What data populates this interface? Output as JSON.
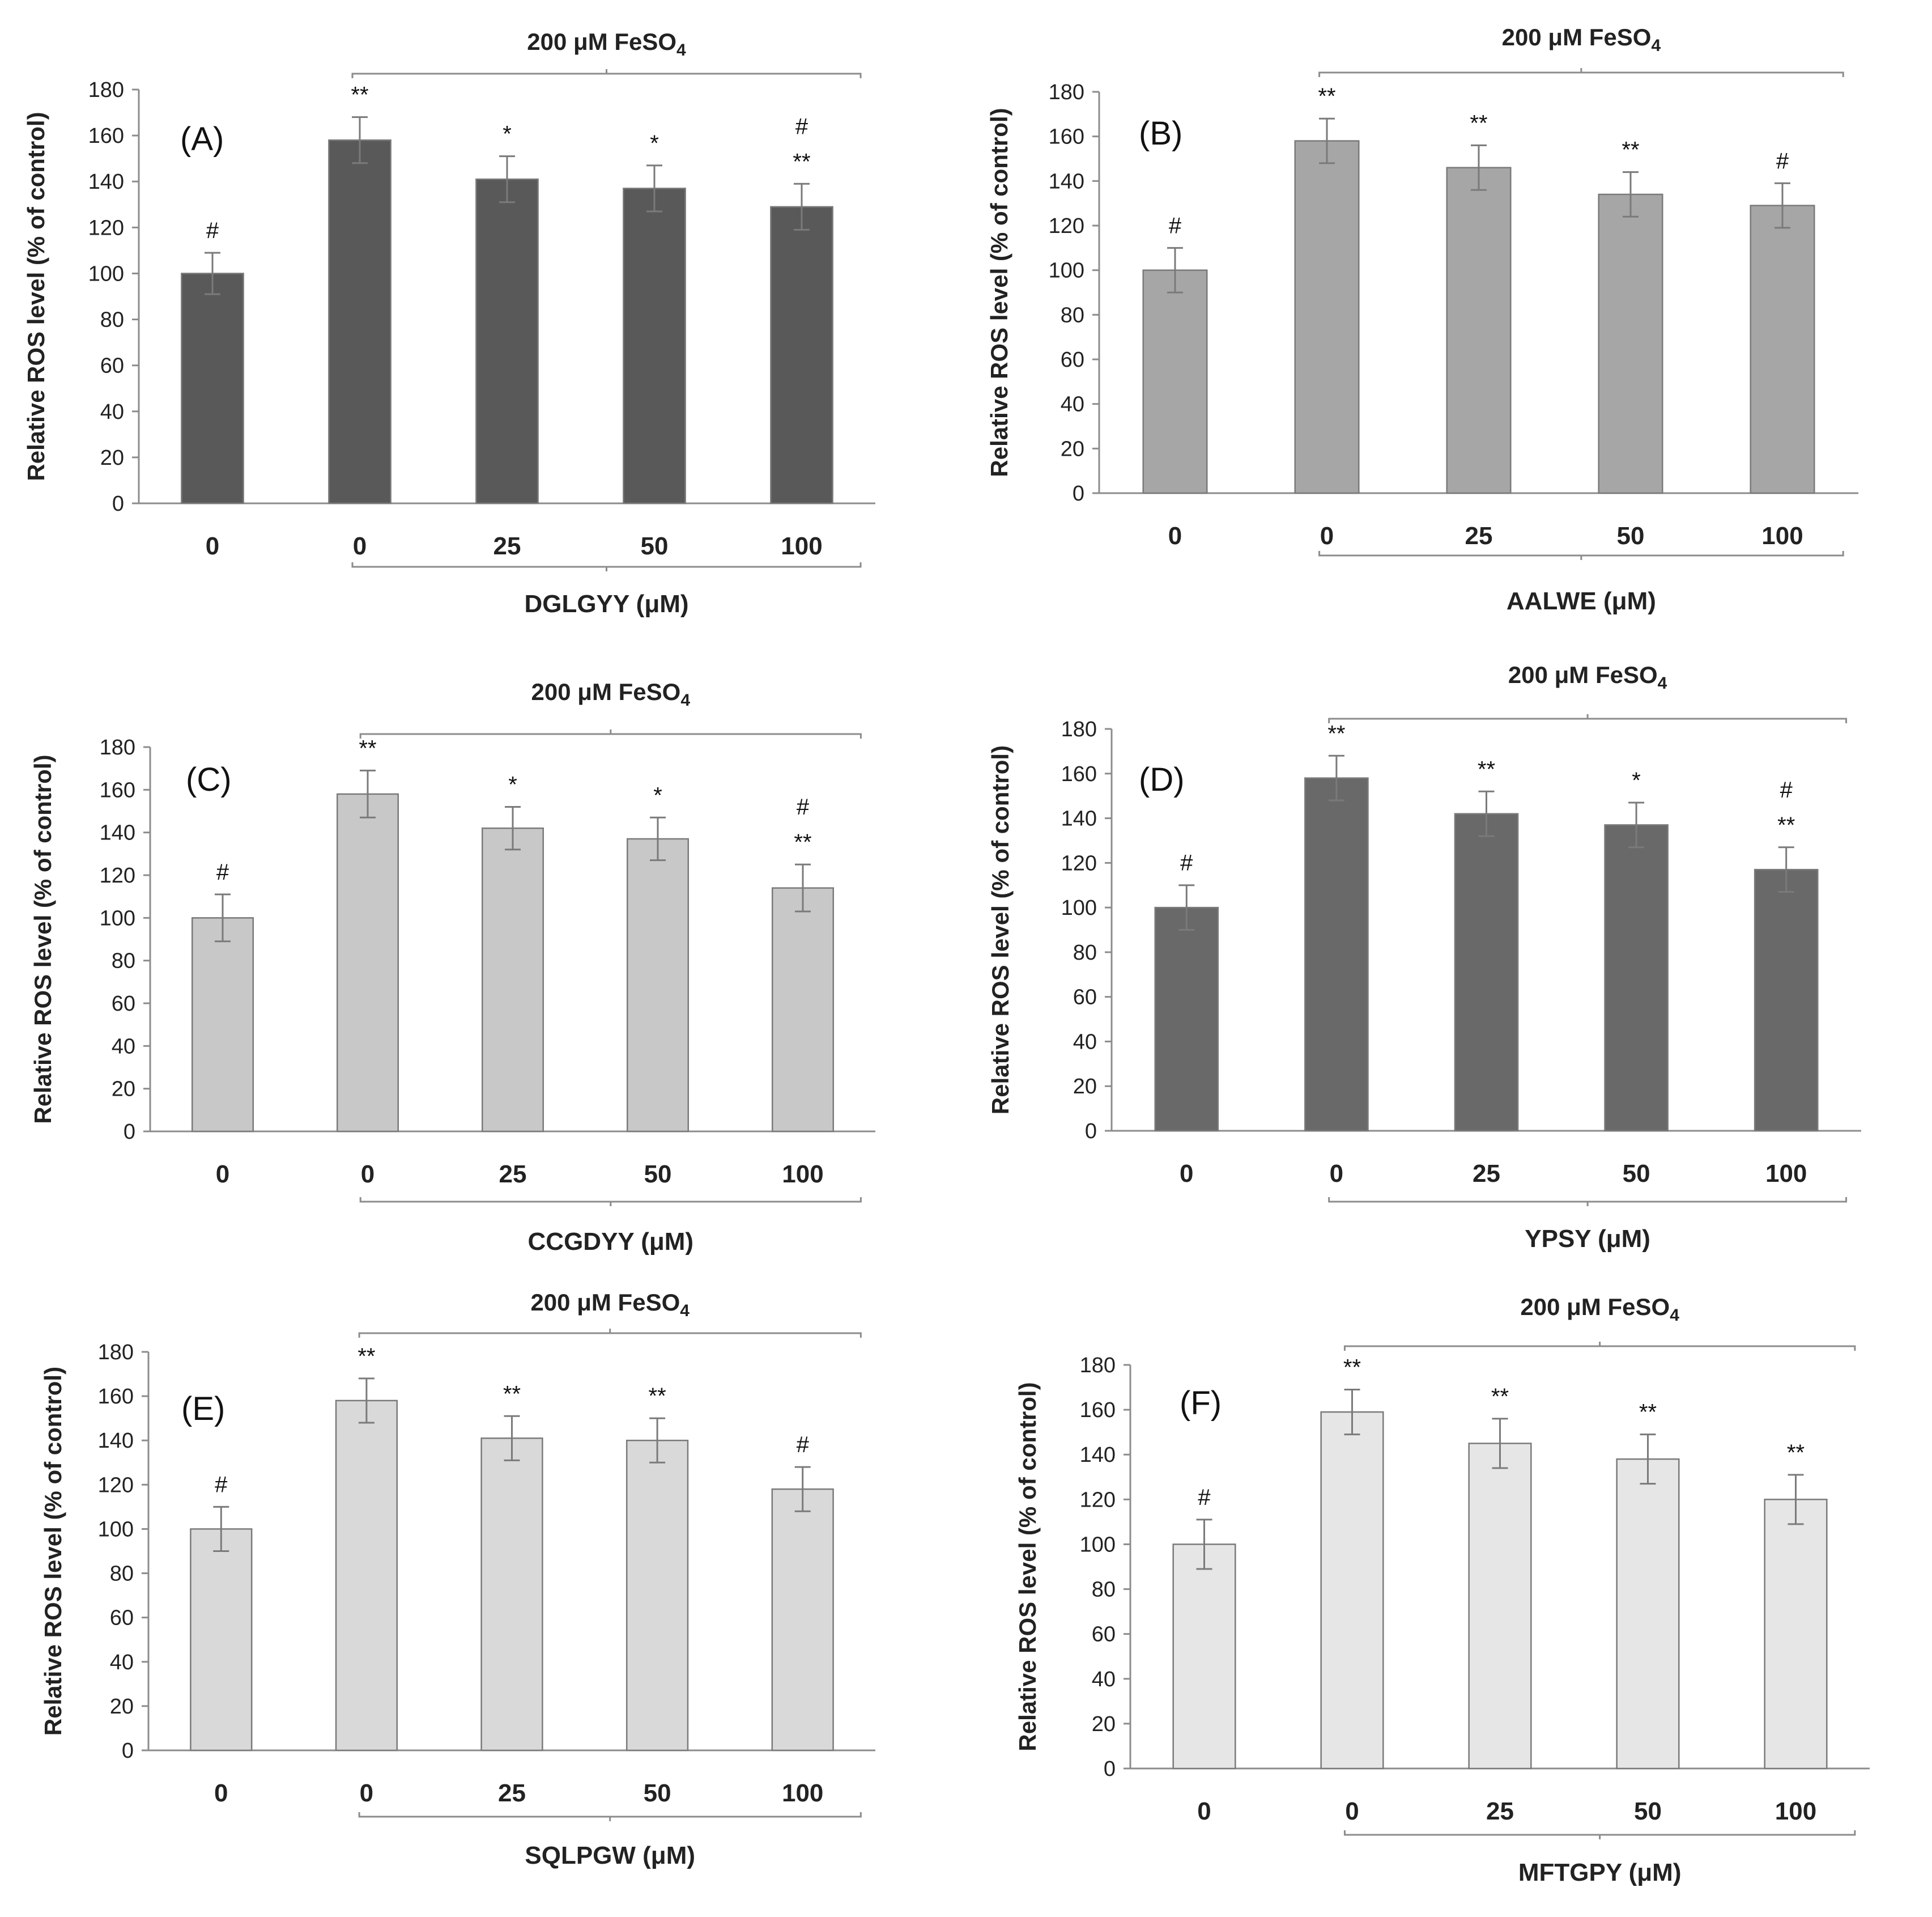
{
  "chart_data": [
    {
      "type": "bar",
      "panel": "(A)",
      "title": "",
      "group_label": "200 μM FeSO",
      "group_subscript": "4",
      "xlabel": "DGLGYY (μM)",
      "ylabel": "Relative ROS level  (% of control)",
      "categories": [
        "0",
        "0",
        "25",
        "50",
        "100"
      ],
      "values": [
        100,
        158,
        141,
        137,
        129
      ],
      "errors": [
        9,
        10,
        10,
        10,
        10
      ],
      "annotations": [
        [
          "#"
        ],
        [
          "**"
        ],
        [
          "*"
        ],
        [
          "*"
        ],
        [
          "**",
          "#"
        ]
      ],
      "ylim": [
        0,
        180
      ],
      "yticks": [
        0,
        20,
        40,
        60,
        80,
        100,
        120,
        140,
        160,
        180
      ],
      "bar_color": "#595959"
    },
    {
      "type": "bar",
      "panel": "(B)",
      "title": "",
      "group_label": "200 μM FeSO",
      "group_subscript": "4",
      "xlabel": "AALWE (μM)",
      "ylabel": "Relative ROS level  (% of control)",
      "categories": [
        "0",
        "0",
        "25",
        "50",
        "100"
      ],
      "values": [
        100,
        158,
        146,
        134,
        129
      ],
      "errors": [
        10,
        10,
        10,
        10,
        10
      ],
      "annotations": [
        [
          "#"
        ],
        [
          "**"
        ],
        [
          "**"
        ],
        [
          "**"
        ],
        [
          "#"
        ]
      ],
      "ylim": [
        0,
        180
      ],
      "yticks": [
        0,
        20,
        40,
        60,
        80,
        100,
        120,
        140,
        160,
        180
      ],
      "bar_color": "#a6a6a6"
    },
    {
      "type": "bar",
      "panel": "(C)",
      "title": "",
      "group_label": "200 μM FeSO",
      "group_subscript": "4",
      "xlabel": "CCGDYY (μM)",
      "ylabel": "Relative ROS level  (% of control)",
      "categories": [
        "0",
        "0",
        "25",
        "50",
        "100"
      ],
      "values": [
        100,
        158,
        142,
        137,
        114
      ],
      "errors": [
        11,
        11,
        10,
        10,
        11
      ],
      "annotations": [
        [
          "#"
        ],
        [
          "**"
        ],
        [
          "*"
        ],
        [
          "*"
        ],
        [
          "**",
          "#"
        ]
      ],
      "ylim": [
        0,
        180
      ],
      "yticks": [
        0,
        20,
        40,
        60,
        80,
        100,
        120,
        140,
        160,
        180
      ],
      "bar_color": "#c8c8c8"
    },
    {
      "type": "bar",
      "panel": "(D)",
      "title": "",
      "group_label": "200 μM FeSO",
      "group_subscript": "4",
      "xlabel": "YPSY (μM)",
      "ylabel": "Relative ROS level  (%  of control)",
      "categories": [
        "0",
        "0",
        "25",
        "50",
        "100"
      ],
      "values": [
        100,
        158,
        142,
        137,
        117
      ],
      "errors": [
        10,
        10,
        10,
        10,
        10
      ],
      "annotations": [
        [
          "#"
        ],
        [
          "**"
        ],
        [
          "**"
        ],
        [
          "*"
        ],
        [
          "**",
          "#"
        ]
      ],
      "ylim": [
        0,
        180
      ],
      "yticks": [
        0,
        20,
        40,
        60,
        80,
        100,
        120,
        140,
        160,
        180
      ],
      "bar_color": "#696969"
    },
    {
      "type": "bar",
      "panel": "(E)",
      "title": "",
      "group_label": "200 μM FeSO",
      "group_subscript": "4",
      "xlabel": "SQLPGW (μM)",
      "ylabel": "Relative ROS level  (% of control)",
      "categories": [
        "0",
        "0",
        "25",
        "50",
        "100"
      ],
      "values": [
        100,
        158,
        141,
        140,
        118
      ],
      "errors": [
        10,
        10,
        10,
        10,
        10
      ],
      "annotations": [
        [
          "#"
        ],
        [
          "**"
        ],
        [
          "**"
        ],
        [
          "**"
        ],
        [
          "#"
        ]
      ],
      "ylim": [
        0,
        180
      ],
      "yticks": [
        0,
        20,
        40,
        60,
        80,
        100,
        120,
        140,
        160,
        180
      ],
      "bar_color": "#d9d9d9"
    },
    {
      "type": "bar",
      "panel": "(F)",
      "title": "",
      "group_label": "200 μM FeSO",
      "group_subscript": "4",
      "xlabel": "MFTGPY (μM)",
      "ylabel": "Relative ROS level  (%  of control)",
      "categories": [
        "0",
        "0",
        "25",
        "50",
        "100"
      ],
      "values": [
        100,
        159,
        145,
        138,
        120
      ],
      "errors": [
        11,
        10,
        11,
        11,
        11
      ],
      "annotations": [
        [
          "#"
        ],
        [
          "**"
        ],
        [
          "**"
        ],
        [
          "**"
        ],
        [
          "**"
        ]
      ],
      "ylim": [
        0,
        180
      ],
      "yticks": [
        0,
        20,
        40,
        60,
        80,
        100,
        120,
        140,
        160,
        180
      ],
      "bar_color": "#e6e6e6"
    }
  ]
}
